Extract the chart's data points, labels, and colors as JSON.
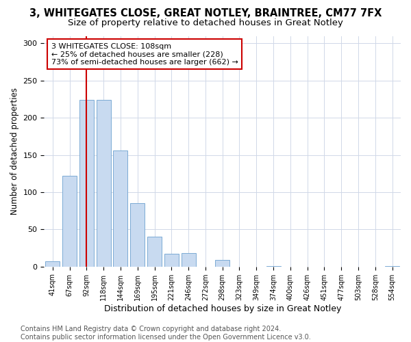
{
  "title": "3, WHITEGATES CLOSE, GREAT NOTLEY, BRAINTREE, CM77 7FX",
  "subtitle": "Size of property relative to detached houses in Great Notley",
  "xlabel": "Distribution of detached houses by size in Great Notley",
  "ylabel": "Number of detached properties",
  "categories": [
    "41sqm",
    "67sqm",
    "92sqm",
    "118sqm",
    "144sqm",
    "169sqm",
    "195sqm",
    "221sqm",
    "246sqm",
    "272sqm",
    "298sqm",
    "323sqm",
    "349sqm",
    "374sqm",
    "400sqm",
    "426sqm",
    "451sqm",
    "477sqm",
    "503sqm",
    "528sqm",
    "554sqm"
  ],
  "values": [
    7,
    122,
    224,
    224,
    156,
    85,
    40,
    17,
    18,
    0,
    9,
    0,
    0,
    1,
    0,
    0,
    0,
    0,
    0,
    0,
    1
  ],
  "bar_color": "#c8daf0",
  "bar_edge_color": "#7baad4",
  "vline_x": 2,
  "vline_color": "#cc0000",
  "annotation_line1": "3 WHITEGATES CLOSE: 108sqm",
  "annotation_line2": "← 25% of detached houses are smaller (228)",
  "annotation_line3": "73% of semi-detached houses are larger (662) →",
  "ylim": [
    0,
    310
  ],
  "yticks": [
    0,
    50,
    100,
    150,
    200,
    250,
    300
  ],
  "footer_line1": "Contains HM Land Registry data © Crown copyright and database right 2024.",
  "footer_line2": "Contains public sector information licensed under the Open Government Licence v3.0.",
  "background_color": "#ffffff",
  "plot_bg_color": "#ffffff",
  "title_fontsize": 10.5,
  "subtitle_fontsize": 9.5,
  "xlabel_fontsize": 9,
  "ylabel_fontsize": 8.5,
  "annotation_fontsize": 8,
  "footer_fontsize": 7
}
